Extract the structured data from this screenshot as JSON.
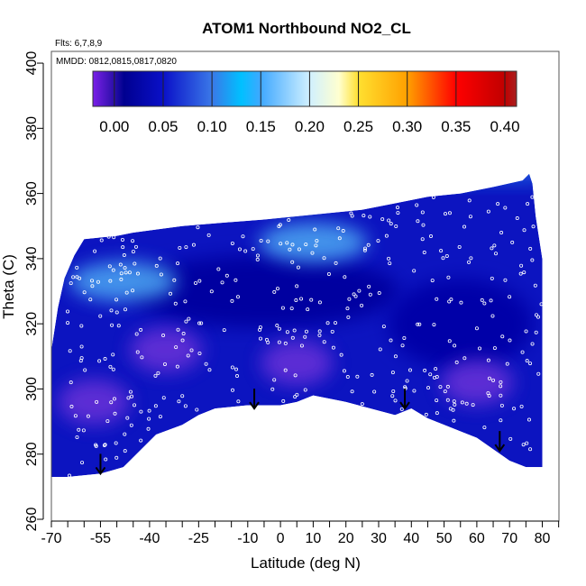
{
  "chart_data": {
    "type": "heatmap",
    "title": "ATOM1 Northbound NO2_CL",
    "subtitle_flights": "Flts: 6,7,8,9",
    "subtitle_dates": "MMDD: 0812,0815,0817,0820",
    "xlabel": "Latitude (deg N)",
    "ylabel": "Theta (C)",
    "xlim": [
      -70,
      85
    ],
    "ylim": [
      260,
      400
    ],
    "x_ticks": [
      -70,
      -65,
      -60,
      -55,
      -50,
      -45,
      -40,
      -35,
      -30,
      -25,
      -20,
      -15,
      -10,
      -5,
      0,
      5,
      10,
      15,
      20,
      25,
      30,
      35,
      40,
      45,
      50,
      55,
      60,
      65,
      70,
      75,
      80,
      85
    ],
    "x_tick_labels": [
      "-70",
      "-55",
      "-40",
      "-25",
      "-10",
      "0",
      "10",
      "20",
      "30",
      "40",
      "50",
      "60",
      "70",
      "80"
    ],
    "x_tick_label_values": [
      -70,
      -55,
      -40,
      -25,
      -10,
      0,
      10,
      20,
      30,
      40,
      50,
      60,
      70,
      80
    ],
    "y_ticks": [
      260,
      280,
      300,
      320,
      340,
      360,
      380,
      400
    ],
    "y_tick_labels": [
      "260",
      "280",
      "300",
      "320",
      "340",
      "360",
      "380",
      "400"
    ],
    "colorbar": {
      "range": [
        -0.022,
        0.412
      ],
      "ticks": [
        0.0,
        0.05,
        0.1,
        0.15,
        0.2,
        0.25,
        0.3,
        0.35,
        0.4
      ],
      "tick_labels": [
        "0.00",
        "0.05",
        "0.10",
        "0.15",
        "0.20",
        "0.25",
        "0.30",
        "0.35",
        "0.40"
      ],
      "stops": [
        {
          "v": -0.022,
          "c": "#7a1fe8"
        },
        {
          "v": 0.0,
          "c": "#2a0fa8"
        },
        {
          "v": 0.01,
          "c": "#000090"
        },
        {
          "v": 0.05,
          "c": "#0a10c8"
        },
        {
          "v": 0.1,
          "c": "#3a78e8"
        },
        {
          "v": 0.13,
          "c": "#00c0ff"
        },
        {
          "v": 0.15,
          "c": "#40a8ff"
        },
        {
          "v": 0.2,
          "c": "#d0f0ff"
        },
        {
          "v": 0.23,
          "c": "#ffffd0"
        },
        {
          "v": 0.25,
          "c": "#ffe030"
        },
        {
          "v": 0.3,
          "c": "#ffa000"
        },
        {
          "v": 0.35,
          "c": "#ff0000"
        },
        {
          "v": 0.4,
          "c": "#c00000"
        },
        {
          "v": 0.412,
          "c": "#a82020"
        }
      ]
    },
    "domain_top": [
      [
        -70,
        312
      ],
      [
        -68,
        325
      ],
      [
        -66,
        334
      ],
      [
        -63,
        341
      ],
      [
        -60,
        346
      ],
      [
        -50,
        347
      ],
      [
        -45,
        348
      ],
      [
        -30,
        350
      ],
      [
        -18,
        351
      ],
      [
        -5,
        352
      ],
      [
        5,
        353
      ],
      [
        15,
        354
      ],
      [
        25,
        355
      ],
      [
        35,
        357
      ],
      [
        45,
        359
      ],
      [
        55,
        360
      ],
      [
        65,
        362
      ],
      [
        74,
        364
      ],
      [
        76,
        366
      ],
      [
        77,
        363
      ],
      [
        78,
        353
      ],
      [
        80,
        340
      ]
    ],
    "domain_bottom": [
      [
        80,
        276
      ],
      [
        75,
        276
      ],
      [
        70,
        278
      ],
      [
        60,
        285
      ],
      [
        45,
        291
      ],
      [
        40,
        294
      ],
      [
        35,
        292
      ],
      [
        20,
        296
      ],
      [
        10,
        298
      ],
      [
        5,
        296
      ],
      [
        0,
        295
      ],
      [
        -10,
        295
      ],
      [
        -20,
        294
      ],
      [
        -25,
        292
      ],
      [
        -30,
        289
      ],
      [
        -38,
        286
      ],
      [
        -48,
        276
      ],
      [
        -55,
        274
      ],
      [
        -65,
        273
      ],
      [
        -70,
        273
      ]
    ],
    "field_features": [
      {
        "kind": "low-purple",
        "lat": -57,
        "theta": 296,
        "value": -0.01
      },
      {
        "kind": "low-purple",
        "lat": -35,
        "theta": 312,
        "value": -0.01
      },
      {
        "kind": "low-purple",
        "lat": 5,
        "theta": 308,
        "value": -0.01
      },
      {
        "kind": "low-purple",
        "lat": 60,
        "theta": 302,
        "value": -0.01
      },
      {
        "kind": "high-lightblue",
        "lat": -48,
        "theta": 333,
        "value": 0.12
      },
      {
        "kind": "high-lightblue",
        "lat": 10,
        "theta": 345,
        "value": 0.09
      }
    ],
    "arrows_lat": [
      -55,
      -8,
      38,
      67
    ],
    "arrows_theta": [
      274,
      294,
      294,
      281
    ]
  }
}
